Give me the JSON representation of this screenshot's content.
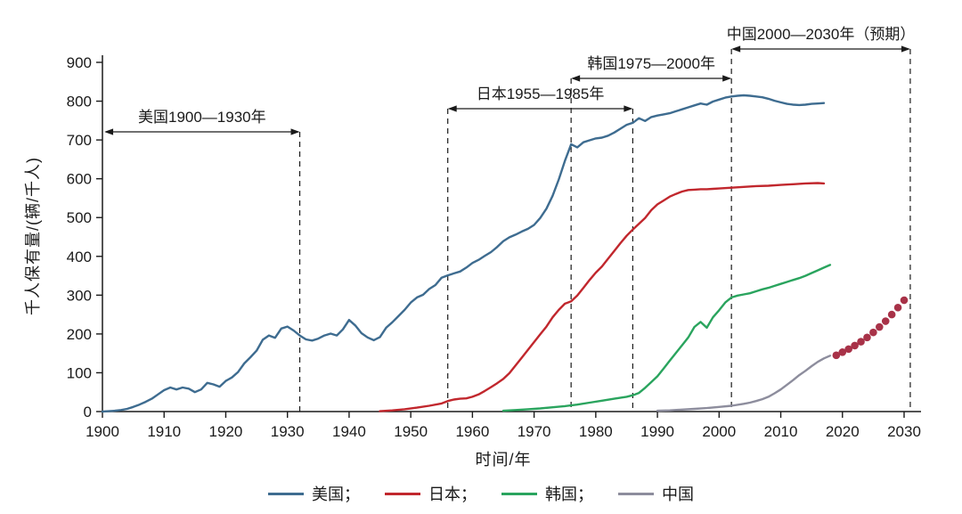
{
  "chart_data": {
    "type": "line",
    "title": "",
    "xlabel": "时间/年",
    "ylabel": "千人保有量/(辆/千人)",
    "xlim": [
      1900,
      2030
    ],
    "ylim": [
      0,
      900
    ],
    "x_ticks": [
      1900,
      1910,
      1920,
      1930,
      1940,
      1950,
      1960,
      1970,
      1980,
      1990,
      2000,
      2010,
      2020,
      2030
    ],
    "y_ticks": [
      0,
      100,
      200,
      300,
      400,
      500,
      600,
      700,
      800,
      900
    ],
    "grid": false,
    "legend_position": "bottom",
    "colors": {
      "ink": "#1a1a1a",
      "background": "#ffffff"
    },
    "series": [
      {
        "name": "usa",
        "legend_label": "美国；",
        "color": "#3e6c90",
        "style": "line",
        "points": [
          [
            1900,
            0
          ],
          [
            1901,
            1
          ],
          [
            1902,
            2
          ],
          [
            1903,
            4
          ],
          [
            1904,
            7
          ],
          [
            1905,
            12
          ],
          [
            1906,
            18
          ],
          [
            1907,
            25
          ],
          [
            1908,
            33
          ],
          [
            1909,
            44
          ],
          [
            1910,
            55
          ],
          [
            1911,
            62
          ],
          [
            1912,
            57
          ],
          [
            1913,
            62
          ],
          [
            1914,
            59
          ],
          [
            1915,
            50
          ],
          [
            1916,
            57
          ],
          [
            1917,
            74
          ],
          [
            1918,
            70
          ],
          [
            1919,
            64
          ],
          [
            1920,
            79
          ],
          [
            1921,
            88
          ],
          [
            1922,
            102
          ],
          [
            1923,
            124
          ],
          [
            1924,
            140
          ],
          [
            1925,
            157
          ],
          [
            1926,
            185
          ],
          [
            1927,
            196
          ],
          [
            1928,
            190
          ],
          [
            1929,
            214
          ],
          [
            1930,
            219
          ],
          [
            1931,
            209
          ],
          [
            1932,
            196
          ],
          [
            1933,
            186
          ],
          [
            1934,
            183
          ],
          [
            1935,
            188
          ],
          [
            1936,
            196
          ],
          [
            1937,
            201
          ],
          [
            1938,
            196
          ],
          [
            1939,
            212
          ],
          [
            1940,
            236
          ],
          [
            1941,
            222
          ],
          [
            1942,
            202
          ],
          [
            1943,
            191
          ],
          [
            1944,
            184
          ],
          [
            1945,
            192
          ],
          [
            1946,
            216
          ],
          [
            1947,
            230
          ],
          [
            1948,
            246
          ],
          [
            1949,
            262
          ],
          [
            1950,
            281
          ],
          [
            1951,
            294
          ],
          [
            1952,
            301
          ],
          [
            1953,
            316
          ],
          [
            1954,
            326
          ],
          [
            1955,
            345
          ],
          [
            1956,
            351
          ],
          [
            1957,
            356
          ],
          [
            1958,
            361
          ],
          [
            1959,
            371
          ],
          [
            1960,
            383
          ],
          [
            1961,
            391
          ],
          [
            1962,
            401
          ],
          [
            1963,
            411
          ],
          [
            1964,
            424
          ],
          [
            1965,
            439
          ],
          [
            1966,
            449
          ],
          [
            1967,
            456
          ],
          [
            1968,
            464
          ],
          [
            1969,
            471
          ],
          [
            1970,
            481
          ],
          [
            1971,
            499
          ],
          [
            1972,
            523
          ],
          [
            1973,
            556
          ],
          [
            1974,
            598
          ],
          [
            1975,
            646
          ],
          [
            1976,
            689
          ],
          [
            1977,
            681
          ],
          [
            1978,
            694
          ],
          [
            1979,
            699
          ],
          [
            1980,
            704
          ],
          [
            1981,
            706
          ],
          [
            1982,
            711
          ],
          [
            1983,
            719
          ],
          [
            1984,
            729
          ],
          [
            1985,
            739
          ],
          [
            1986,
            744
          ],
          [
            1987,
            756
          ],
          [
            1988,
            749
          ],
          [
            1989,
            759
          ],
          [
            1990,
            763
          ],
          [
            1991,
            766
          ],
          [
            1992,
            769
          ],
          [
            1993,
            774
          ],
          [
            1994,
            779
          ],
          [
            1995,
            784
          ],
          [
            1996,
            789
          ],
          [
            1997,
            794
          ],
          [
            1998,
            791
          ],
          [
            1999,
            799
          ],
          [
            2000,
            804
          ],
          [
            2001,
            809
          ],
          [
            2002,
            812
          ],
          [
            2003,
            814
          ],
          [
            2004,
            815
          ],
          [
            2005,
            814
          ],
          [
            2006,
            812
          ],
          [
            2007,
            810
          ],
          [
            2008,
            806
          ],
          [
            2009,
            801
          ],
          [
            2010,
            797
          ],
          [
            2011,
            793
          ],
          [
            2012,
            791
          ],
          [
            2013,
            790
          ],
          [
            2014,
            791
          ],
          [
            2015,
            793
          ],
          [
            2016,
            794
          ],
          [
            2017,
            795
          ]
        ]
      },
      {
        "name": "japan",
        "legend_label": "日本；",
        "color": "#c1272d",
        "style": "line",
        "points": [
          [
            1945,
            1
          ],
          [
            1947,
            3
          ],
          [
            1949,
            6
          ],
          [
            1951,
            10
          ],
          [
            1953,
            15
          ],
          [
            1955,
            21
          ],
          [
            1956,
            27
          ],
          [
            1957,
            31
          ],
          [
            1958,
            33
          ],
          [
            1959,
            34
          ],
          [
            1960,
            38
          ],
          [
            1961,
            44
          ],
          [
            1962,
            53
          ],
          [
            1963,
            63
          ],
          [
            1964,
            73
          ],
          [
            1965,
            84
          ],
          [
            1966,
            99
          ],
          [
            1967,
            119
          ],
          [
            1968,
            139
          ],
          [
            1969,
            159
          ],
          [
            1970,
            179
          ],
          [
            1971,
            199
          ],
          [
            1972,
            219
          ],
          [
            1973,
            243
          ],
          [
            1974,
            262
          ],
          [
            1975,
            278
          ],
          [
            1976,
            284
          ],
          [
            1977,
            299
          ],
          [
            1978,
            319
          ],
          [
            1979,
            339
          ],
          [
            1980,
            358
          ],
          [
            1981,
            374
          ],
          [
            1982,
            394
          ],
          [
            1983,
            414
          ],
          [
            1984,
            434
          ],
          [
            1985,
            453
          ],
          [
            1986,
            469
          ],
          [
            1987,
            484
          ],
          [
            1988,
            499
          ],
          [
            1989,
            519
          ],
          [
            1990,
            534
          ],
          [
            1991,
            544
          ],
          [
            1992,
            554
          ],
          [
            1993,
            561
          ],
          [
            1994,
            567
          ],
          [
            1995,
            571
          ],
          [
            1996,
            572
          ],
          [
            1997,
            573
          ],
          [
            1998,
            573
          ],
          [
            1999,
            574
          ],
          [
            2000,
            575
          ],
          [
            2002,
            577
          ],
          [
            2004,
            579
          ],
          [
            2006,
            581
          ],
          [
            2008,
            582
          ],
          [
            2010,
            584
          ],
          [
            2012,
            586
          ],
          [
            2014,
            588
          ],
          [
            2016,
            589
          ],
          [
            2017,
            588
          ]
        ]
      },
      {
        "name": "korea",
        "legend_label": "韩国；",
        "color": "#2aa45e",
        "style": "line",
        "points": [
          [
            1965,
            2
          ],
          [
            1967,
            4
          ],
          [
            1969,
            6
          ],
          [
            1971,
            8
          ],
          [
            1973,
            11
          ],
          [
            1975,
            14
          ],
          [
            1977,
            18
          ],
          [
            1979,
            23
          ],
          [
            1981,
            28
          ],
          [
            1983,
            33
          ],
          [
            1985,
            38
          ],
          [
            1986,
            42
          ],
          [
            1987,
            48
          ],
          [
            1988,
            61
          ],
          [
            1989,
            76
          ],
          [
            1990,
            91
          ],
          [
            1991,
            111
          ],
          [
            1992,
            131
          ],
          [
            1993,
            151
          ],
          [
            1994,
            171
          ],
          [
            1995,
            191
          ],
          [
            1996,
            218
          ],
          [
            1997,
            231
          ],
          [
            1998,
            216
          ],
          [
            1999,
            243
          ],
          [
            2000,
            261
          ],
          [
            2001,
            281
          ],
          [
            2002,
            294
          ],
          [
            2003,
            299
          ],
          [
            2004,
            302
          ],
          [
            2005,
            305
          ],
          [
            2006,
            310
          ],
          [
            2007,
            315
          ],
          [
            2008,
            319
          ],
          [
            2009,
            324
          ],
          [
            2010,
            329
          ],
          [
            2011,
            334
          ],
          [
            2012,
            339
          ],
          [
            2013,
            344
          ],
          [
            2014,
            350
          ],
          [
            2015,
            357
          ],
          [
            2016,
            364
          ],
          [
            2017,
            371
          ],
          [
            2018,
            378
          ]
        ]
      },
      {
        "name": "china",
        "legend_label": "中国",
        "color": "#8d8d9d",
        "style": "line",
        "points": [
          [
            1990,
            2
          ],
          [
            1992,
            3
          ],
          [
            1994,
            5
          ],
          [
            1996,
            7
          ],
          [
            1998,
            9
          ],
          [
            2000,
            12
          ],
          [
            2002,
            15
          ],
          [
            2004,
            20
          ],
          [
            2005,
            23
          ],
          [
            2006,
            27
          ],
          [
            2007,
            32
          ],
          [
            2008,
            38
          ],
          [
            2009,
            47
          ],
          [
            2010,
            57
          ],
          [
            2011,
            69
          ],
          [
            2012,
            81
          ],
          [
            2013,
            94
          ],
          [
            2014,
            105
          ],
          [
            2015,
            117
          ],
          [
            2016,
            128
          ],
          [
            2017,
            137
          ],
          [
            2018,
            144
          ]
        ]
      },
      {
        "name": "china-forecast",
        "legend_label": "",
        "color": "#a83248",
        "style": "scatter",
        "points": [
          [
            2019,
            145
          ],
          [
            2020,
            153
          ],
          [
            2021,
            161
          ],
          [
            2022,
            170
          ],
          [
            2023,
            180
          ],
          [
            2024,
            191
          ],
          [
            2025,
            204
          ],
          [
            2026,
            218
          ],
          [
            2027,
            233
          ],
          [
            2028,
            250
          ],
          [
            2029,
            268
          ],
          [
            2030,
            287
          ]
        ]
      }
    ],
    "annotations": [
      {
        "label": "美国1900—1930年",
        "from_year": 1900.3,
        "to_year": 1932,
        "level": 1
      },
      {
        "label": "日本1955—1985年",
        "from_year": 1956,
        "to_year": 1986,
        "level": 2
      },
      {
        "label": "韩国1975—2000年",
        "from_year": 1976,
        "to_year": 2002,
        "level": 3
      },
      {
        "label": "中国2000—2030年（预期）",
        "from_year": 2002,
        "to_year": 2031,
        "level": 4
      }
    ],
    "dashed_lines": [
      {
        "year": 1932,
        "level": 1
      },
      {
        "year": 1956,
        "level": 2
      },
      {
        "year": 1976,
        "level": 3
      },
      {
        "year": 1986,
        "level": 2
      },
      {
        "year": 2002,
        "level": 4
      },
      {
        "year": 2031,
        "level": 4
      }
    ]
  }
}
